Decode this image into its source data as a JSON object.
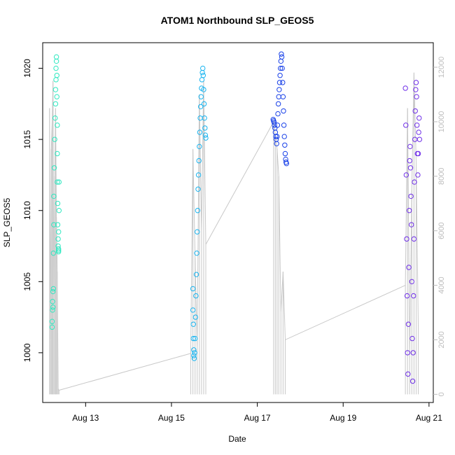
{
  "chart_data": {
    "type": "scatter",
    "title": "ATOM1 Northbound SLP_GEOS5",
    "xlabel": "Date",
    "ylabel": "SLP_GEOS5",
    "x_unit": "days_in_august",
    "xlim": [
      12.0,
      21.1
    ],
    "ylim": [
      996.5,
      1021.8
    ],
    "y2lim": [
      -300,
      12900
    ],
    "x_ticks": [
      13,
      15,
      17,
      19,
      21
    ],
    "x_tick_labels": [
      "Aug 13",
      "Aug 15",
      "Aug 17",
      "Aug 19",
      "Aug 21"
    ],
    "y_ticks": [
      1000,
      1005,
      1010,
      1015,
      1020
    ],
    "y_tick_labels": [
      "1000",
      "1005",
      "1010",
      "1015",
      "1020"
    ],
    "y2_ticks": [
      0,
      2000,
      4000,
      6000,
      8000,
      10000,
      12000
    ],
    "y2_tick_labels": [
      "0",
      "2000",
      "4000",
      "6000",
      "8000",
      "10000",
      "12000"
    ],
    "grid": false,
    "legend": "none",
    "colors": {
      "flight1": "#2ee8c0",
      "flight2": "#18b4f0",
      "flight3": "#1840e8",
      "flight4": "#7030e8",
      "secondary_line": "#c8c8c8",
      "axis": "#000000",
      "secondary_axis": "#bdbdbd"
    },
    "series": [
      {
        "x": [
          12.22,
          12.22,
          12.23,
          12.23,
          12.24,
          12.24,
          12.25,
          12.25,
          12.26,
          12.26,
          12.27,
          12.28,
          12.29,
          12.3,
          12.3,
          12.31,
          12.31,
          12.32,
          12.32,
          12.33,
          12.33,
          12.34,
          12.34,
          12.34,
          12.35,
          12.35,
          12.36,
          12.36,
          12.37,
          12.37,
          12.37,
          12.37,
          12.38,
          12.38
        ],
        "y": [
          1001.8,
          1002.2,
          1003.0,
          1003.6,
          1004.3,
          1003.2,
          1004.5,
          1007.0,
          1009.0,
          1011.0,
          1013.0,
          1015.0,
          1016.5,
          1017.5,
          1018.5,
          1019.2,
          1020.0,
          1020.8,
          1020.5,
          1019.5,
          1018.0,
          1016.0,
          1014.0,
          1012.0,
          1010.5,
          1009.0,
          1008.0,
          1007.5,
          1007.2,
          1007.1,
          1007.3,
          1008.5,
          1010.0,
          1012.0
        ]
      },
      {
        "x": [
          15.5,
          15.5,
          15.51,
          15.51,
          15.52,
          15.52,
          15.53,
          15.54,
          15.55,
          15.56,
          15.57,
          15.58,
          15.59,
          15.6,
          15.61,
          15.62,
          15.63,
          15.64,
          15.65,
          15.66,
          15.67,
          15.68,
          15.69,
          15.7,
          15.71,
          15.72,
          15.73,
          15.74,
          15.75,
          15.76,
          15.77,
          15.78,
          15.79,
          15.8
        ],
        "y": [
          1004.5,
          1003.0,
          1002.0,
          1001.0,
          1000.2,
          999.8,
          999.6,
          1000.0,
          1001.0,
          1002.5,
          1004.0,
          1005.5,
          1007.0,
          1008.5,
          1010.0,
          1011.5,
          1012.5,
          1013.5,
          1014.5,
          1015.5,
          1016.5,
          1017.3,
          1018.0,
          1018.6,
          1019.2,
          1019.7,
          1020.0,
          1019.5,
          1018.5,
          1017.5,
          1016.5,
          1015.8,
          1015.3,
          1015.1
        ]
      },
      {
        "x": [
          17.37,
          17.38,
          17.39,
          17.4,
          17.41,
          17.42,
          17.43,
          17.44,
          17.45,
          17.46,
          17.47,
          17.48,
          17.49,
          17.5,
          17.51,
          17.52,
          17.53,
          17.54,
          17.55,
          17.56,
          17.57,
          17.58,
          17.59,
          17.6,
          17.61,
          17.62,
          17.63,
          17.64,
          17.65,
          17.66,
          17.67,
          17.68
        ],
        "y": [
          1016.4,
          1016.3,
          1016.2,
          1016.0,
          1015.8,
          1015.5,
          1015.2,
          1015.0,
          1014.7,
          1015.2,
          1016.0,
          1016.8,
          1017.5,
          1018.0,
          1018.5,
          1019.0,
          1019.5,
          1020.0,
          1020.5,
          1021.0,
          1020.8,
          1020.0,
          1019.0,
          1018.0,
          1017.0,
          1016.0,
          1015.2,
          1014.6,
          1014.0,
          1013.6,
          1013.4,
          1013.3
        ]
      },
      {
        "x": [
          20.45,
          20.46,
          20.47,
          20.48,
          20.49,
          20.5,
          20.51,
          20.52,
          20.53,
          20.54,
          20.55,
          20.56,
          20.57,
          20.58,
          20.59,
          20.6,
          20.61,
          20.62,
          20.63,
          20.64,
          20.65,
          20.66,
          20.67,
          20.68,
          20.69,
          20.7,
          20.71,
          20.72,
          20.73,
          20.74,
          20.75,
          20.76,
          20.77,
          20.78
        ],
        "y": [
          1018.6,
          1016.0,
          1012.5,
          1008.0,
          1004.0,
          1000.0,
          998.5,
          1002.0,
          1006.0,
          1010.0,
          1013.5,
          1014.5,
          1013.0,
          1011.0,
          1009.0,
          1005.0,
          1001.0,
          998.0,
          1000.0,
          1004.0,
          1008.0,
          1012.0,
          1015.0,
          1017.0,
          1018.5,
          1019.0,
          1018.0,
          1016.0,
          1014.0,
          1012.5,
          1014.0,
          1015.5,
          1016.5,
          1015.0
        ]
      }
    ],
    "secondary_series": {
      "axis": "right",
      "style": "vertical drop lines and connecting trace",
      "x": [
        12.16,
        12.18,
        12.2,
        12.22,
        12.24,
        12.26,
        12.28,
        12.3,
        12.32,
        12.34,
        12.36,
        12.38,
        15.45,
        15.5,
        15.55,
        15.6,
        15.65,
        15.7,
        15.75,
        15.8,
        17.38,
        17.42,
        17.46,
        17.5,
        17.55,
        17.6,
        17.65,
        20.45,
        20.5,
        20.55,
        20.6,
        20.65,
        20.7,
        20.75
      ],
      "y": [
        10500,
        2000,
        9000,
        10000,
        11500,
        3500,
        8000,
        10500,
        6500,
        4500,
        200,
        150,
        1500,
        9000,
        5000,
        1700,
        11000,
        6000,
        11500,
        5500,
        10000,
        9500,
        9000,
        8000,
        3000,
        4500,
        2000,
        4000,
        10500,
        1500,
        7500,
        11800,
        8500,
        2500
      ]
    }
  }
}
